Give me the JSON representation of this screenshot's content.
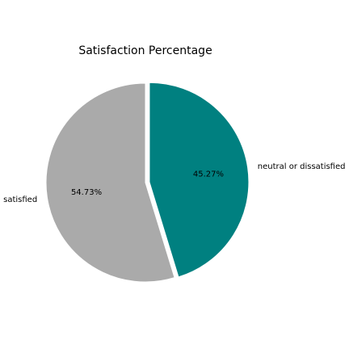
{
  "chart_data": {
    "type": "pie",
    "title": "Satisfaction Percentage",
    "slices": [
      {
        "label": "neutral or dissatisfied",
        "value": 45.27,
        "pct_label": "45.27%",
        "color": "#008080",
        "exploded": true
      },
      {
        "label": "satisfied",
        "value": 54.73,
        "pct_label": "54.73%",
        "color": "#aaaaaa",
        "exploded": false
      }
    ],
    "start_angle_deg": 90,
    "direction": "clockwise"
  }
}
